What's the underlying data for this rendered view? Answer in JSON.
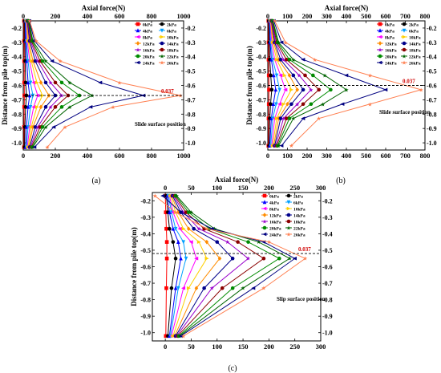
{
  "colors": [
    "#ff0000",
    "#000000",
    "#0000ff",
    "#00a0ff",
    "#ff00ff",
    "#ffd000",
    "#ff8c00",
    "#00008b",
    "#9900cc",
    "#8b0000",
    "#008b00",
    "#006400",
    "#000080",
    "#ff7f50"
  ],
  "chart_data": [
    {
      "panel": "(a)",
      "type": "line",
      "title": "Axial force(N)",
      "ylabel": "Distance from pile top(m)",
      "xlim": [
        0,
        1000
      ],
      "ylim": [
        -1.05,
        -0.15
      ],
      "x_ticks": [
        "0",
        "200",
        "400",
        "600",
        "800",
        "1000"
      ],
      "y_ticks": [
        "-0.2",
        "-0.3",
        "-0.4",
        "-0.5",
        "-0.6",
        "-0.7",
        "-0.8",
        "-0.9",
        "-1.0"
      ],
      "slide_label": "Slide surface position",
      "slide_y": -0.67,
      "slide_value": "0.037",
      "depths": [
        -0.15,
        -0.29,
        -0.43,
        -0.58,
        -0.67,
        -0.75,
        -0.89,
        -1.03
      ],
      "series": [
        {
          "name": "0kPa",
          "values": [
            5,
            5,
            6,
            6,
            7,
            6,
            5,
            5
          ]
        },
        {
          "name": "2kPa",
          "values": [
            8,
            10,
            12,
            15,
            20,
            15,
            10,
            8
          ]
        },
        {
          "name": "4kPa",
          "values": [
            12,
            15,
            22,
            30,
            40,
            30,
            20,
            15
          ]
        },
        {
          "name": "6kPa",
          "values": [
            15,
            20,
            30,
            45,
            60,
            45,
            30,
            20
          ]
        },
        {
          "name": "8kPa",
          "values": [
            18,
            25,
            40,
            65,
            90,
            65,
            40,
            25
          ]
        },
        {
          "name": "10kPa",
          "values": [
            20,
            30,
            50,
            85,
            120,
            85,
            50,
            30
          ]
        },
        {
          "name": "12kPa",
          "values": [
            22,
            35,
            60,
            110,
            160,
            110,
            60,
            35
          ]
        },
        {
          "name": "14kPa",
          "values": [
            25,
            40,
            75,
            140,
            200,
            140,
            75,
            40
          ]
        },
        {
          "name": "16kPa",
          "values": [
            28,
            45,
            90,
            170,
            240,
            170,
            90,
            45
          ]
        },
        {
          "name": "18kPa",
          "values": [
            30,
            50,
            105,
            200,
            280,
            200,
            105,
            50
          ]
        },
        {
          "name": "20kPa",
          "values": [
            32,
            55,
            120,
            240,
            350,
            240,
            120,
            55
          ]
        },
        {
          "name": "22kPa",
          "values": [
            35,
            60,
            140,
            290,
            430,
            290,
            140,
            60
          ]
        },
        {
          "name": "24kPa",
          "values": [
            38,
            70,
            180,
            480,
            750,
            420,
            190,
            70
          ]
        },
        {
          "name": "26kPa",
          "values": [
            40,
            80,
            230,
            600,
            980,
            560,
            260,
            150
          ]
        }
      ]
    },
    {
      "panel": "(b)",
      "type": "line",
      "title": "Axial force(N)",
      "ylabel": "Distance from pile top(m)",
      "xlim": [
        0,
        800
      ],
      "ylim": [
        -1.05,
        -0.15
      ],
      "x_ticks": [
        "0",
        "100",
        "200",
        "300",
        "400",
        "500",
        "600",
        "700",
        "800"
      ],
      "y_ticks": [
        "-0.2",
        "-0.3",
        "-0.4",
        "-0.5",
        "-0.6",
        "-0.7",
        "-0.8",
        "-0.9",
        "-1.0"
      ],
      "slide_label": "Slide surface position",
      "slide_y": -0.6,
      "slide_value": "0.037",
      "depths": [
        -0.15,
        -0.3,
        -0.42,
        -0.53,
        -0.63,
        -0.73,
        -0.83,
        -1.02
      ],
      "series": [
        {
          "name": "0kPa",
          "values": [
            3,
            4,
            4,
            5,
            6,
            5,
            4,
            3
          ]
        },
        {
          "name": "2kPa",
          "values": [
            5,
            8,
            10,
            15,
            20,
            14,
            10,
            6
          ]
        },
        {
          "name": "4kPa",
          "values": [
            8,
            12,
            18,
            30,
            40,
            28,
            18,
            10
          ]
        },
        {
          "name": "6kPa",
          "values": [
            10,
            15,
            25,
            45,
            60,
            42,
            25,
            15
          ]
        },
        {
          "name": "8kPa",
          "values": [
            12,
            20,
            35,
            65,
            90,
            60,
            35,
            20
          ]
        },
        {
          "name": "10kPa",
          "values": [
            14,
            25,
            45,
            85,
            120,
            80,
            45,
            25
          ]
        },
        {
          "name": "12kPa",
          "values": [
            16,
            30,
            55,
            110,
            150,
            100,
            55,
            30
          ]
        },
        {
          "name": "14kPa",
          "values": [
            18,
            35,
            65,
            130,
            180,
            120,
            65,
            35
          ]
        },
        {
          "name": "16kPa",
          "values": [
            20,
            40,
            80,
            160,
            220,
            150,
            80,
            40
          ]
        },
        {
          "name": "18kPa",
          "values": [
            22,
            45,
            95,
            190,
            260,
            180,
            95,
            45
          ]
        },
        {
          "name": "20kPa",
          "values": [
            24,
            50,
            110,
            230,
            320,
            220,
            110,
            50
          ]
        },
        {
          "name": "22kPa",
          "values": [
            26,
            55,
            130,
            290,
            400,
            280,
            130,
            55
          ]
        },
        {
          "name": "24kPa",
          "values": [
            30,
            70,
            180,
            400,
            600,
            380,
            180,
            70
          ]
        },
        {
          "name": "26kPa",
          "values": [
            35,
            90,
            240,
            520,
            780,
            520,
            260,
            120
          ]
        }
      ]
    },
    {
      "panel": "(c)",
      "type": "line",
      "title": "Axial force(N)",
      "ylabel": "Distance from pile top(m)",
      "xlim": [
        -25,
        300
      ],
      "ylim": [
        -1.05,
        -0.15
      ],
      "x_ticks": [
        "0",
        "50",
        "100",
        "150",
        "200",
        "250",
        "300"
      ],
      "y_ticks": [
        "-0.2",
        "-0.3",
        "-0.4",
        "-0.5",
        "-0.6",
        "-0.7",
        "-0.8",
        "-0.9",
        "-1.0"
      ],
      "slide_label": "Slip surface position",
      "slide_y": -0.52,
      "slide_value": "0.037",
      "depths": [
        -0.17,
        -0.27,
        -0.37,
        -0.45,
        -0.55,
        -0.73,
        -1.02
      ],
      "series": [
        {
          "name": "0kPa",
          "values": [
            0,
            1,
            2,
            3,
            3,
            2,
            1
          ]
        },
        {
          "name": "2kPa",
          "values": [
            2,
            5,
            8,
            15,
            20,
            12,
            5
          ]
        },
        {
          "name": "4kPa",
          "values": [
            4,
            8,
            15,
            25,
            30,
            20,
            8
          ]
        },
        {
          "name": "6kPa",
          "values": [
            6,
            12,
            20,
            35,
            40,
            25,
            10
          ]
        },
        {
          "name": "8kPa",
          "values": [
            8,
            15,
            28,
            50,
            60,
            35,
            12
          ]
        },
        {
          "name": "10kPa",
          "values": [
            10,
            20,
            35,
            65,
            80,
            45,
            15
          ]
        },
        {
          "name": "12kPa",
          "values": [
            12,
            25,
            45,
            80,
            105,
            60,
            18
          ]
        },
        {
          "name": "14kPa",
          "values": [
            14,
            30,
            55,
            100,
            130,
            75,
            20
          ]
        },
        {
          "name": "16kPa",
          "values": [
            16,
            35,
            65,
            120,
            160,
            90,
            22
          ]
        },
        {
          "name": "18kPa",
          "values": [
            18,
            40,
            75,
            140,
            190,
            110,
            24
          ]
        },
        {
          "name": "20kPa",
          "values": [
            20,
            45,
            85,
            160,
            220,
            130,
            26
          ]
        },
        {
          "name": "22kPa",
          "values": [
            22,
            50,
            95,
            180,
            240,
            150,
            28
          ]
        },
        {
          "name": "24kPa",
          "values": [
            -5,
            30,
            90,
            190,
            250,
            170,
            30
          ]
        },
        {
          "name": "26kPa",
          "values": [
            -20,
            20,
            80,
            200,
            270,
            190,
            35
          ]
        }
      ]
    }
  ],
  "panels": [
    {
      "tag": "(a)"
    },
    {
      "tag": "(b)"
    },
    {
      "tag": "(c)"
    }
  ]
}
